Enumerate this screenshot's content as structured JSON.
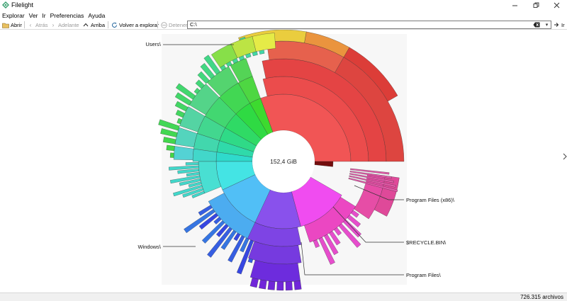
{
  "window": {
    "title": "Filelight",
    "controls": [
      "minimize",
      "restore",
      "close"
    ]
  },
  "menubar": {
    "items": [
      "Explorar",
      "Ver",
      "Ir",
      "Preferencias",
      "Ayuda"
    ]
  },
  "toolbar": {
    "open_label": "Abrir",
    "back_label": "Atrás",
    "forward_label": "Adelante",
    "up_label": "Arriba",
    "rescan_label": "Volver a explorar",
    "stop_label": "Detener",
    "path_value": "C:\\",
    "go_label": "Ir"
  },
  "map": {
    "center_label": "152,4 GiB",
    "labels": {
      "users": "Users\\",
      "program_files_x86": "Program Files (x86)\\",
      "recycle_bin": "$RECYCLE.BIN\\",
      "windows": "Windows\\",
      "program_files": "Program Files\\"
    }
  },
  "statusbar": {
    "file_count": "726.315 archivos"
  },
  "colors": {
    "users": "#f05050",
    "program_files_x86": "#e84ac0",
    "program_files": "#8040f0",
    "windows": "#50b8f8",
    "green": "#50e050",
    "teal": "#40e0c0"
  }
}
